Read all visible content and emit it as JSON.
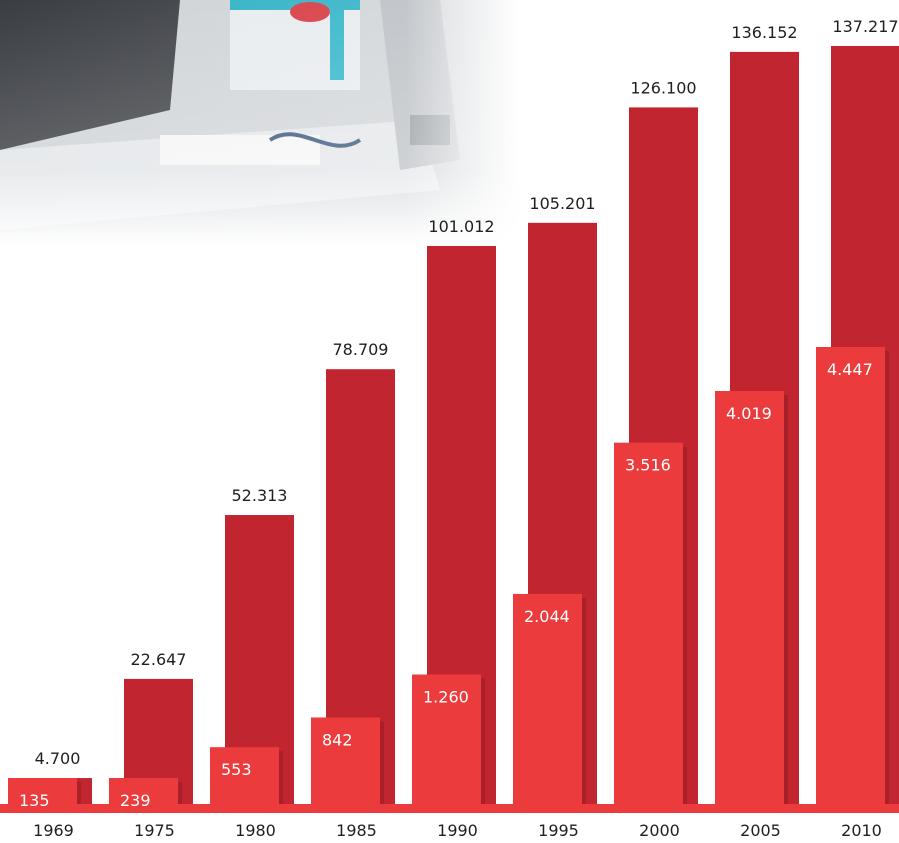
{
  "chart_data": {
    "type": "bar",
    "categories": [
      "1969",
      "1975",
      "1980",
      "1985",
      "1990",
      "1995",
      "2000",
      "2005",
      "2010"
    ],
    "series": [
      {
        "values": [
          4700,
          22647,
          52313,
          78709,
          101012,
          105201,
          126100,
          136152,
          137217
        ],
        "labels": [
          "4.700",
          "22.647",
          "52.313",
          "78.709",
          "101.012",
          "105.201",
          "126.100",
          "136.152",
          "137.217"
        ]
      },
      {
        "values": [
          135,
          239,
          553,
          842,
          1260,
          2044,
          3516,
          4019,
          4447
        ],
        "labels": [
          "135",
          "239",
          "553",
          "842",
          "1.260",
          "2.044",
          "3.516",
          "4.019",
          "4.447"
        ]
      }
    ],
    "colors": {
      "back_bars": "#C1252F",
      "front_bars": "#EC3B3D",
      "baseline": "#EC3B3D",
      "label_dark": "#1f1f1f",
      "label_light": "#ffffff"
    },
    "grid": false,
    "legend": "none"
  }
}
